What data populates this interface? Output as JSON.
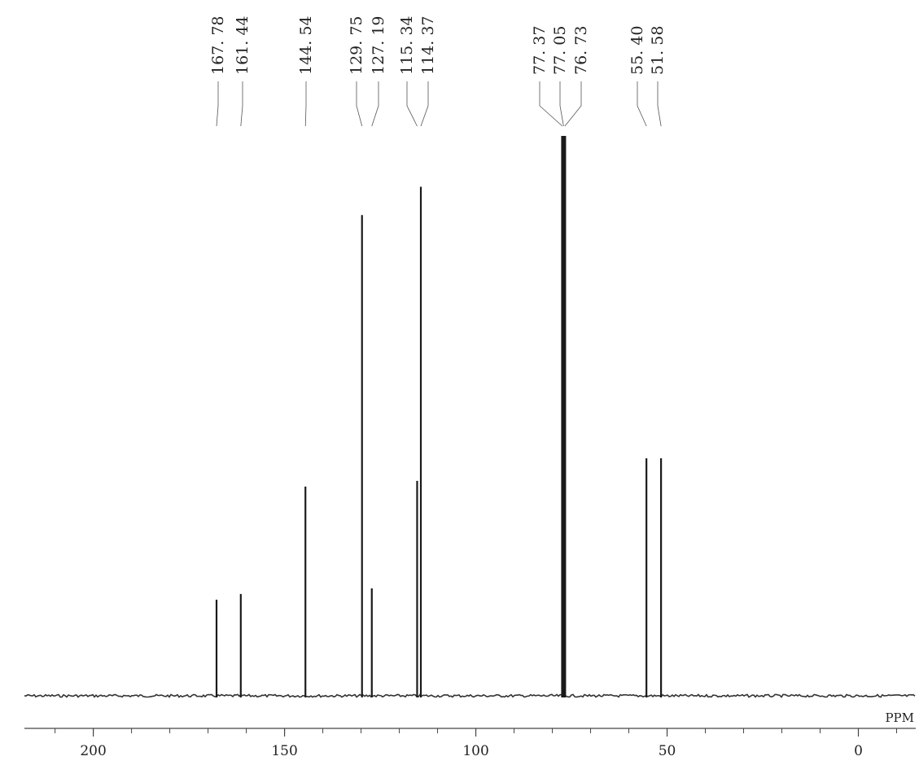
{
  "chart_data": {
    "type": "line",
    "title": "",
    "xlabel": "PPM",
    "ylabel": "",
    "xlim": [
      218,
      -15
    ],
    "x_reversed": true,
    "grid": false,
    "x_ticks": [
      200,
      150,
      100,
      50,
      0
    ],
    "x_tick_labels": [
      "200",
      "150",
      "100",
      "50",
      "0"
    ],
    "peaks": [
      {
        "ppm": 167.78,
        "height": 0.17
      },
      {
        "ppm": 161.44,
        "height": 0.18
      },
      {
        "ppm": 144.54,
        "height": 0.37
      },
      {
        "ppm": 129.75,
        "height": 0.85
      },
      {
        "ppm": 127.19,
        "height": 0.19
      },
      {
        "ppm": 115.34,
        "height": 0.38
      },
      {
        "ppm": 114.37,
        "height": 0.9
      },
      {
        "ppm": 77.37,
        "height": 0.99
      },
      {
        "ppm": 77.05,
        "height": 0.99
      },
      {
        "ppm": 76.73,
        "height": 0.99
      },
      {
        "ppm": 55.4,
        "height": 0.42
      },
      {
        "ppm": 51.58,
        "height": 0.42
      }
    ],
    "peak_labels": [
      {
        "text": "167. 78",
        "ppm": 167.78
      },
      {
        "text": "161. 44",
        "ppm": 161.44
      },
      {
        "text": "144. 54",
        "ppm": 144.54
      },
      {
        "text": "129. 75",
        "ppm": 129.75
      },
      {
        "text": "127. 19",
        "ppm": 127.19
      },
      {
        "text": "115. 34",
        "ppm": 115.34
      },
      {
        "text": "114. 37",
        "ppm": 114.37
      },
      {
        "text": "77. 37",
        "ppm": 77.37
      },
      {
        "text": "77. 05",
        "ppm": 77.05
      },
      {
        "text": "76. 73",
        "ppm": 76.73
      },
      {
        "text": "55. 40",
        "ppm": 55.4
      },
      {
        "text": "51. 58",
        "ppm": 51.58
      }
    ]
  }
}
